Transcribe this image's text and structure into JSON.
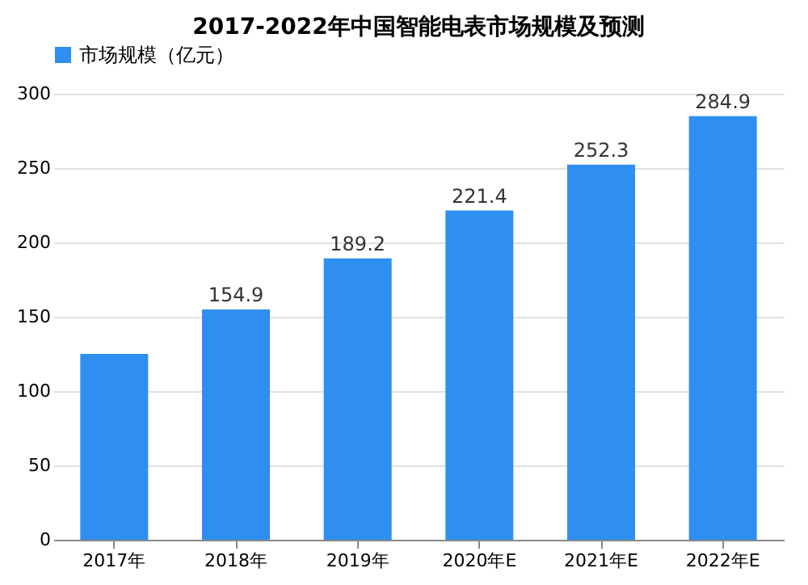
{
  "chart_data": {
    "type": "bar",
    "title": "2017-2022年中国智能电表市场规模及预测",
    "categories": [
      "2017年",
      "2018年",
      "2019年",
      "2020年E",
      "2021年E",
      "2022年E"
    ],
    "series": [
      {
        "name": "市场规模（亿元）",
        "color": "#2f8ff0",
        "values": [
          125,
          154.9,
          189.2,
          221.4,
          252.3,
          284.9
        ],
        "value_labels": [
          null,
          "154.9",
          "189.2",
          "221.4",
          "252.3",
          "284.9"
        ]
      }
    ],
    "ylim": [
      0,
      300
    ],
    "yticks": [
      0,
      50,
      100,
      150,
      200,
      250,
      300
    ],
    "grid": "y",
    "legend": "top"
  }
}
